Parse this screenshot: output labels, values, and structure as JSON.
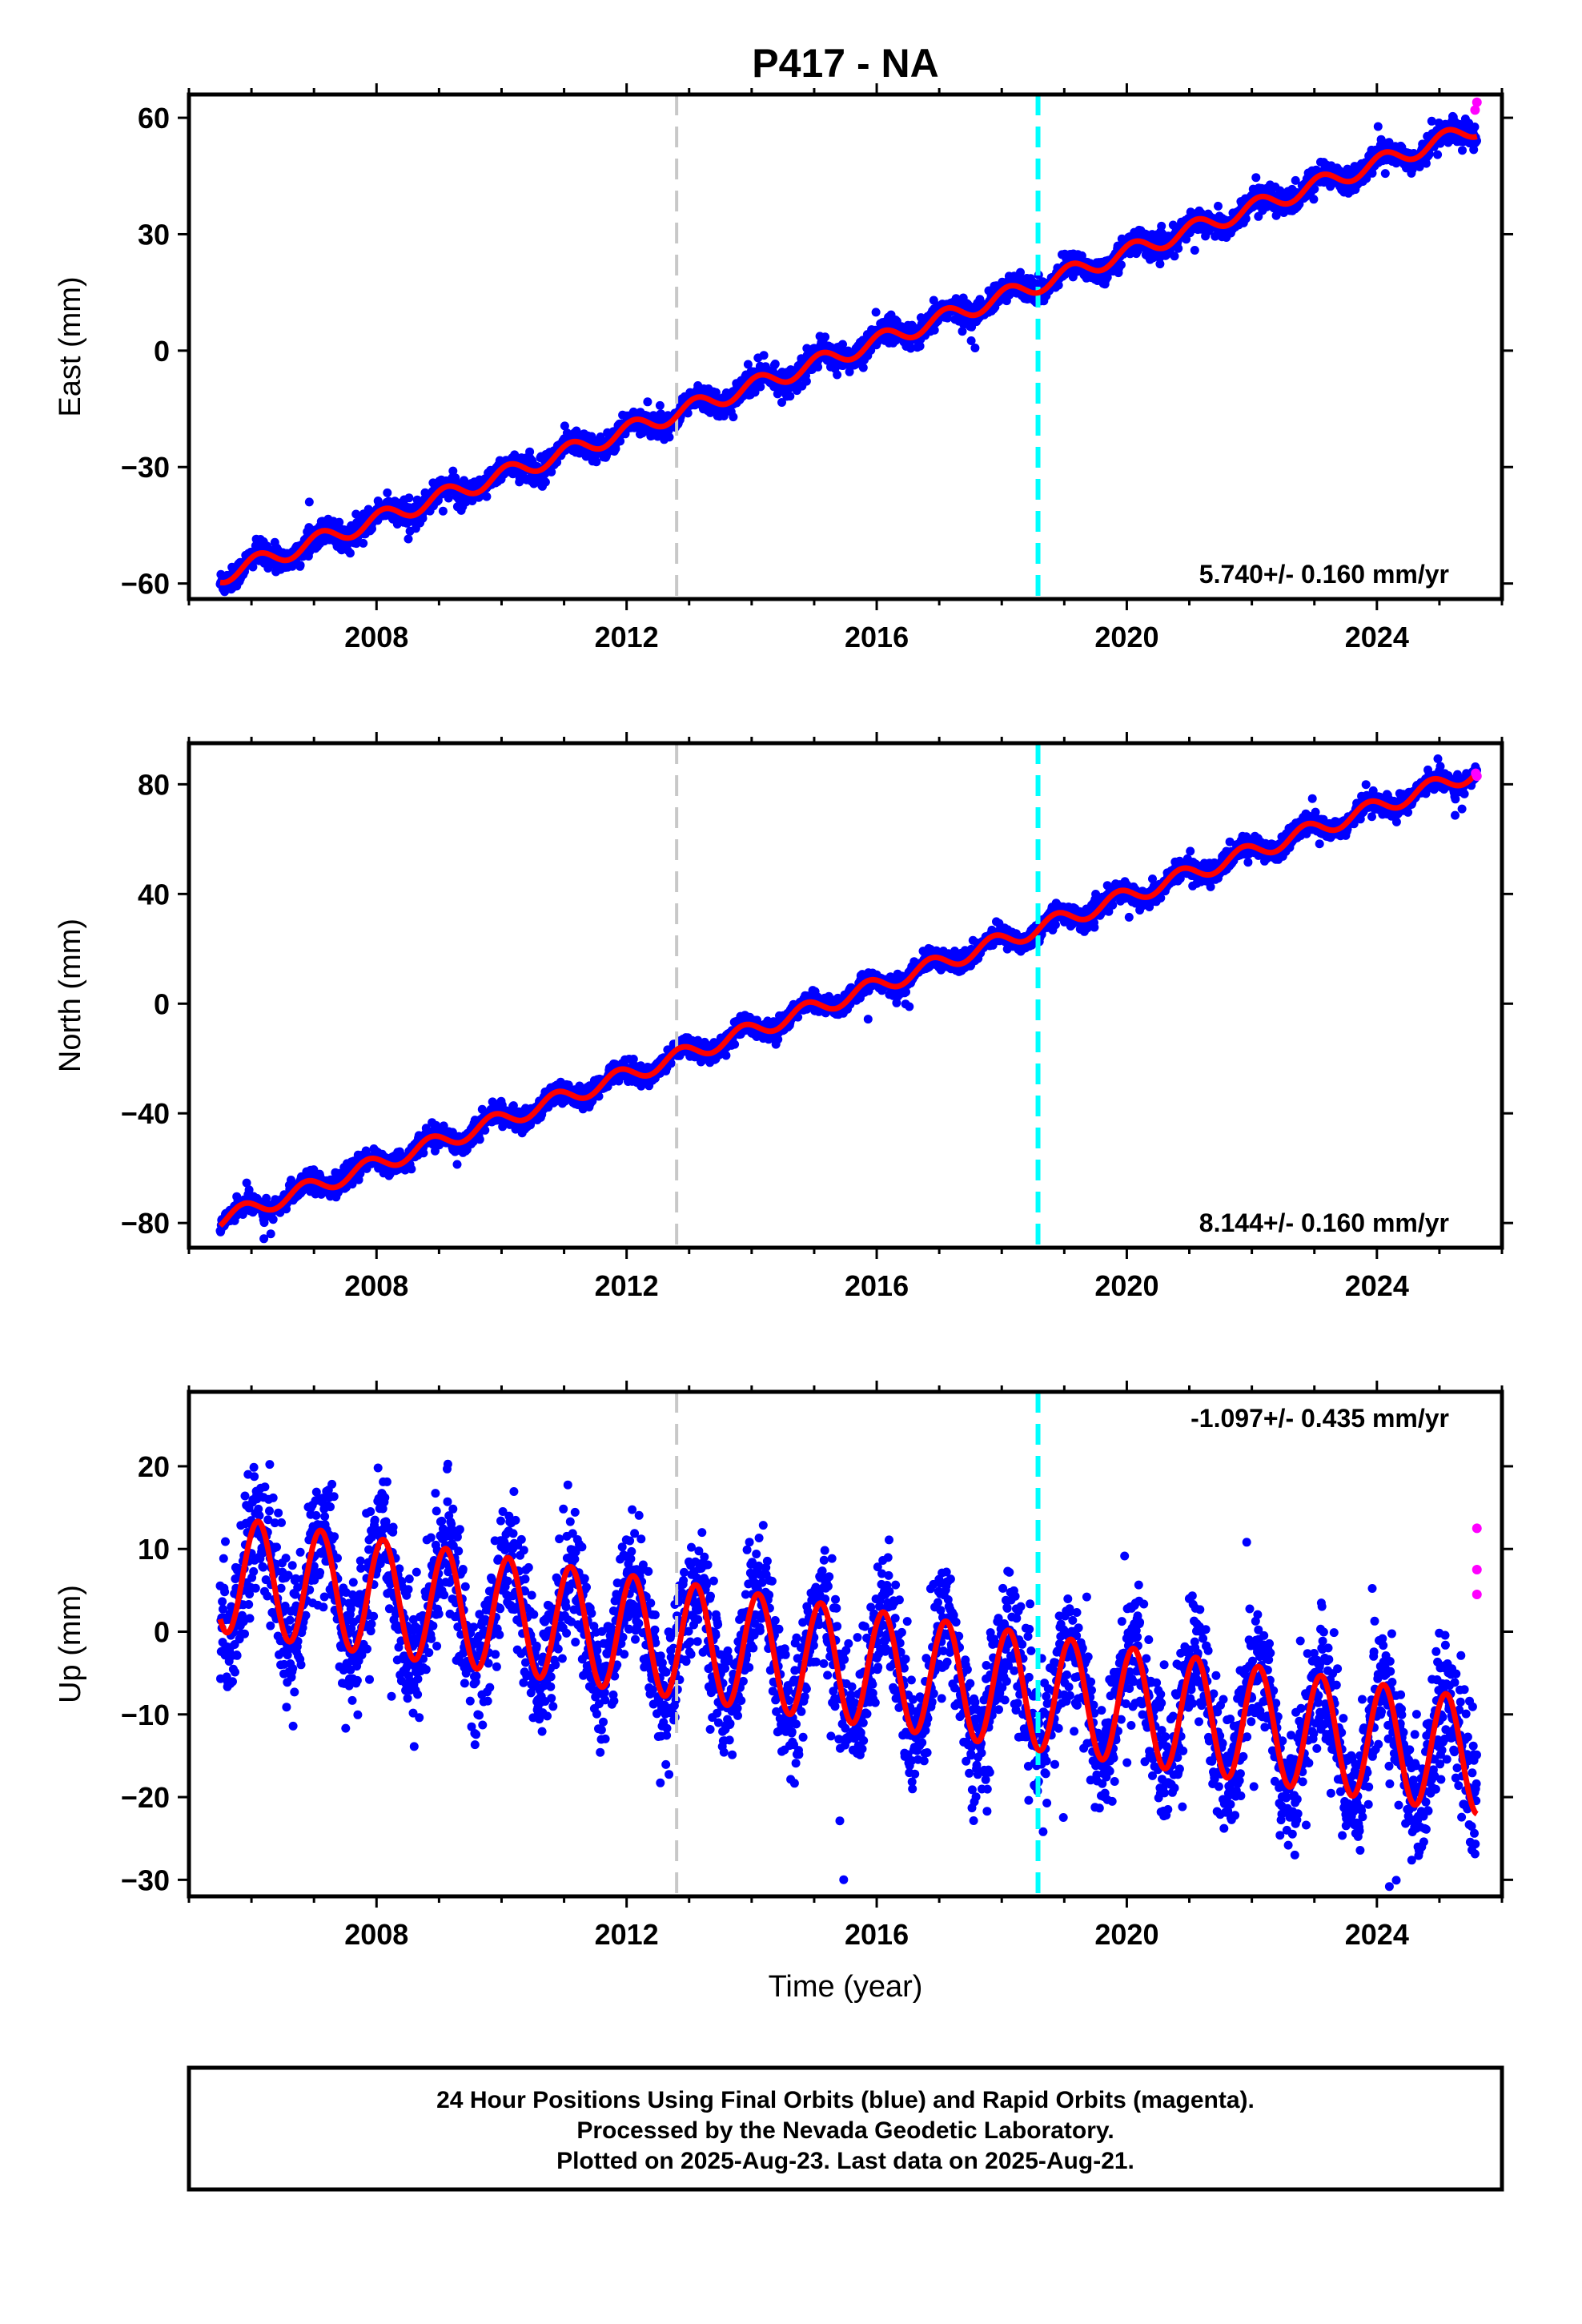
{
  "chart_data": [
    {
      "type": "scatter",
      "title": "P417 - NA",
      "ylabel": "East (mm)",
      "xlabel": "",
      "xlim": [
        2005.0,
        2026.0
      ],
      "ylim": [
        -64,
        66
      ],
      "xticks": [
        2008,
        2012,
        2016,
        2020,
        2024
      ],
      "xtick_labels": [
        "2008",
        "2012",
        "2016",
        "2020",
        "2024"
      ],
      "yticks": [
        -60,
        -30,
        0,
        30,
        60
      ],
      "ytick_labels": [
        "−60",
        "−30",
        "0",
        "30",
        "60"
      ],
      "rate_label": "5.740+/- 0.160 mm/yr",
      "rate_position": "bottom-right",
      "grid": false,
      "model": {
        "t0": 2005.5,
        "y0": -58,
        "rate": 5.74,
        "annual_amplitude": 2.2,
        "annual_phase": 0.9,
        "scatter_sd": 1.5,
        "period_years": 1.0,
        "start": 2005.5,
        "end": 2025.6,
        "interval_years": 0.0055
      },
      "series": [
        {
          "name": "Final Orbits",
          "color": "#0000ff",
          "style": "points"
        },
        {
          "name": "Rapid Orbits",
          "color": "#ff00ff",
          "style": "points",
          "x": [
            2025.57,
            2025.6
          ],
          "y": [
            62,
            64
          ]
        },
        {
          "name": "",
          "color": "#ff0000",
          "style": "line"
        }
      ],
      "vlines": [
        {
          "x": 2012.8,
          "color": "#c8c8c8",
          "style": "dashed"
        },
        {
          "x": 2018.58,
          "color": "#00ffff",
          "style": "dashed"
        }
      ]
    },
    {
      "type": "scatter",
      "title": "",
      "ylabel": "North (mm)",
      "xlabel": "",
      "xlim": [
        2005.0,
        2026.0
      ],
      "ylim": [
        -89,
        95
      ],
      "xticks": [
        2008,
        2012,
        2016,
        2020,
        2024
      ],
      "xtick_labels": [
        "2008",
        "2012",
        "2016",
        "2020",
        "2024"
      ],
      "yticks": [
        -80,
        -40,
        0,
        40,
        80
      ],
      "ytick_labels": [
        "−80",
        "−40",
        "0",
        "40",
        "80"
      ],
      "rate_label": "8.144+/- 0.160 mm/yr",
      "rate_position": "bottom-right",
      "grid": false,
      "model": {
        "t0": 2005.5,
        "y0": -79,
        "rate": 8.144,
        "annual_amplitude": 3.0,
        "annual_phase": 2.4,
        "scatter_sd": 1.8,
        "period_years": 1.0,
        "start": 2005.5,
        "end": 2025.6,
        "interval_years": 0.0055
      },
      "series": [
        {
          "name": "Final Orbits",
          "color": "#0000ff",
          "style": "points"
        },
        {
          "name": "Rapid Orbits",
          "color": "#ff00ff",
          "style": "points",
          "x": [
            2025.58,
            2025.6
          ],
          "y": [
            84,
            83
          ]
        },
        {
          "name": "",
          "color": "#ff0000",
          "style": "line"
        }
      ],
      "vlines": [
        {
          "x": 2012.8,
          "color": "#c8c8c8",
          "style": "dashed"
        },
        {
          "x": 2018.58,
          "color": "#00ffff",
          "style": "dashed"
        }
      ]
    },
    {
      "type": "scatter",
      "title": "",
      "ylabel": "Up (mm)",
      "xlabel": "Time (year)",
      "xlim": [
        2005.0,
        2026.0
      ],
      "ylim": [
        -32,
        29
      ],
      "xticks": [
        2008,
        2012,
        2016,
        2020,
        2024
      ],
      "xtick_labels": [
        "2008",
        "2012",
        "2016",
        "2020",
        "2024"
      ],
      "yticks": [
        -30,
        -20,
        -10,
        0,
        10,
        20
      ],
      "ytick_labels": [
        "−30",
        "−20",
        "−10",
        "0",
        "10",
        "20"
      ],
      "rate_label": "-1.097+/- 0.435 mm/yr",
      "rate_position": "top-right",
      "grid": false,
      "model": {
        "t0": 2005.5,
        "y0": 7,
        "rate": -1.097,
        "annual_amplitude": 7.0,
        "annual_phase": 0.9,
        "scatter_sd": 3.8,
        "period_years": 1.0,
        "start": 2005.5,
        "end": 2025.6,
        "interval_years": 0.0055
      },
      "series": [
        {
          "name": "Final Orbits",
          "color": "#0000ff",
          "style": "points"
        },
        {
          "name": "Rapid Orbits",
          "color": "#ff00ff",
          "style": "points",
          "x": [
            2025.6,
            2025.6,
            2025.6
          ],
          "y": [
            12.5,
            7.5,
            4.5
          ]
        },
        {
          "name": "",
          "color": "#ff0000",
          "style": "line"
        }
      ],
      "vlines": [
        {
          "x": 2012.8,
          "color": "#c8c8c8",
          "style": "dashed"
        },
        {
          "x": 2018.58,
          "color": "#00ffff",
          "style": "dashed"
        }
      ]
    }
  ],
  "footer": {
    "line1": "24 Hour Positions Using Final Orbits (blue) and Rapid Orbits (magenta).",
    "line2": "Processed by the Nevada Geodetic Laboratory.",
    "line3": "Plotted on 2025-Aug-23. Last data on 2025-Aug-21."
  },
  "colors": {
    "final_points": "#0000ff",
    "rapid_points": "#ff00ff",
    "model_line": "#ff0000",
    "frame": "#000000"
  }
}
